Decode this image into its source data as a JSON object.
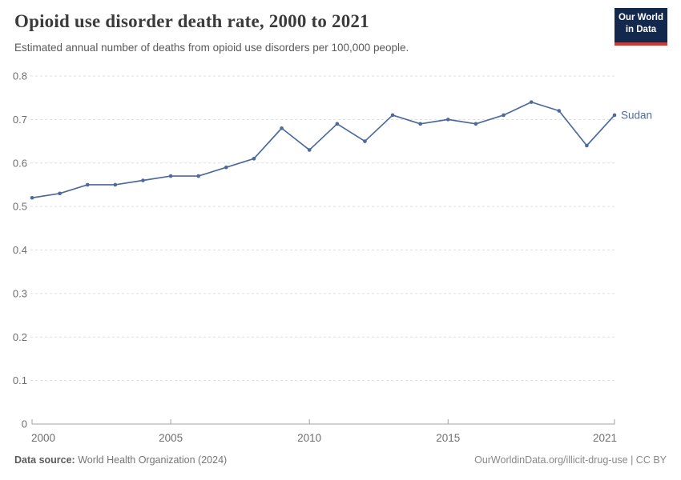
{
  "header": {
    "title": "Opioid use disorder death rate, 2000 to 2021",
    "subtitle": "Estimated annual number of deaths from opioid use disorders per 100,000 people.",
    "logo": {
      "line1": "Our World",
      "line2": "in Data",
      "bg_color": "#12294d",
      "accent_color": "#d8352e"
    }
  },
  "chart_data": {
    "type": "line",
    "title": "Opioid use disorder death rate, 2000 to 2021",
    "xlabel": "",
    "ylabel": "",
    "xlim": [
      2000,
      2021
    ],
    "ylim": [
      0,
      0.8
    ],
    "grid": true,
    "gridline_color": "#dddddd",
    "axis_color": "#a3a3a3",
    "tick_label_color": "#6e6e6e",
    "xticks": [
      2000,
      2005,
      2010,
      2015,
      2021
    ],
    "yticks": [
      0,
      0.1,
      0.2,
      0.3,
      0.4,
      0.5,
      0.6,
      0.7,
      0.8
    ],
    "x": [
      2000,
      2001,
      2002,
      2003,
      2004,
      2005,
      2006,
      2007,
      2008,
      2009,
      2010,
      2011,
      2012,
      2013,
      2014,
      2015,
      2016,
      2017,
      2018,
      2019,
      2020,
      2021
    ],
    "series": [
      {
        "name": "Sudan",
        "color": "#4C6A9C",
        "values": [
          0.52,
          0.53,
          0.55,
          0.55,
          0.56,
          0.57,
          0.57,
          0.59,
          0.61,
          0.68,
          0.63,
          0.69,
          0.65,
          0.71,
          0.69,
          0.7,
          0.69,
          0.71,
          0.74,
          0.72,
          0.64,
          0.71
        ]
      }
    ],
    "legend_position": "end-of-line-label"
  },
  "footer": {
    "source_label": "Data source:",
    "source_text": " World Health Organization (2024)",
    "credit": "OurWorldinData.org/illicit-drug-use | CC BY"
  }
}
